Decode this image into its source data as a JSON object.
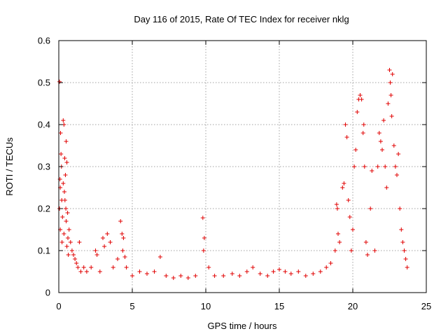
{
  "chart_data": {
    "type": "scatter",
    "title": "Day 116 of 2015, Rate Of TEC Index for receiver nklg",
    "xlabel": "GPS time / hours",
    "ylabel": "ROTI / TECUs",
    "xlim": [
      0,
      25
    ],
    "ylim": [
      0,
      0.6
    ],
    "xticks": [
      0,
      5,
      10,
      15,
      20,
      25
    ],
    "yticks": [
      0,
      0.1,
      0.2,
      0.3,
      0.4,
      0.5,
      0.6
    ],
    "xtick_labels": [
      "0",
      "5",
      "10",
      "15",
      "20",
      "25"
    ],
    "ytick_labels": [
      "0",
      "0.1",
      "0.2",
      "0.3",
      "0.4",
      "0.5",
      "0.6"
    ],
    "grid": true,
    "marker": "+",
    "color": "#e00000",
    "series": [
      {
        "points": [
          [
            0.05,
            0.502
          ],
          [
            0.08,
            0.27
          ],
          [
            0.12,
            0.38
          ],
          [
            0.15,
            0.33
          ],
          [
            0.1,
            0.25
          ],
          [
            0.2,
            0.22
          ],
          [
            0.18,
            0.3
          ],
          [
            0.05,
            0.2
          ],
          [
            0.1,
            0.15
          ],
          [
            0.22,
            0.12
          ],
          [
            0.3,
            0.41
          ],
          [
            0.35,
            0.4
          ],
          [
            0.4,
            0.32
          ],
          [
            0.45,
            0.28
          ],
          [
            0.5,
            0.36
          ],
          [
            0.55,
            0.31
          ],
          [
            0.3,
            0.26
          ],
          [
            0.38,
            0.24
          ],
          [
            0.48,
            0.2
          ],
          [
            0.6,
            0.19
          ],
          [
            0.42,
            0.22
          ],
          [
            0.5,
            0.17
          ],
          [
            0.7,
            0.15
          ],
          [
            0.62,
            0.13
          ],
          [
            0.8,
            0.12
          ],
          [
            0.9,
            0.1
          ],
          [
            0.55,
            0.11
          ],
          [
            0.35,
            0.14
          ],
          [
            0.25,
            0.18
          ],
          [
            0.65,
            0.09
          ],
          [
            1.0,
            0.09
          ],
          [
            1.1,
            0.08
          ],
          [
            1.2,
            0.07
          ],
          [
            1.3,
            0.06
          ],
          [
            1.4,
            0.12
          ],
          [
            1.5,
            0.05
          ],
          [
            1.7,
            0.06
          ],
          [
            1.9,
            0.05
          ],
          [
            2.2,
            0.06
          ],
          [
            2.5,
            0.1
          ],
          [
            2.6,
            0.09
          ],
          [
            2.8,
            0.05
          ],
          [
            3.0,
            0.13
          ],
          [
            3.1,
            0.11
          ],
          [
            3.3,
            0.14
          ],
          [
            3.5,
            0.12
          ],
          [
            3.7,
            0.06
          ],
          [
            4.0,
            0.08
          ],
          [
            4.2,
            0.17
          ],
          [
            4.3,
            0.14
          ],
          [
            4.35,
            0.1
          ],
          [
            4.4,
            0.13
          ],
          [
            4.5,
            0.085
          ],
          [
            4.6,
            0.06
          ],
          [
            5.0,
            0.04
          ],
          [
            5.5,
            0.05
          ],
          [
            6.0,
            0.045
          ],
          [
            6.5,
            0.05
          ],
          [
            6.9,
            0.085
          ],
          [
            7.3,
            0.04
          ],
          [
            7.8,
            0.035
          ],
          [
            8.3,
            0.04
          ],
          [
            8.8,
            0.035
          ],
          [
            9.3,
            0.04
          ],
          [
            9.8,
            0.178
          ],
          [
            9.85,
            0.1
          ],
          [
            9.9,
            0.13
          ],
          [
            10.2,
            0.06
          ],
          [
            10.6,
            0.04
          ],
          [
            11.2,
            0.04
          ],
          [
            11.8,
            0.045
          ],
          [
            12.3,
            0.04
          ],
          [
            12.8,
            0.05
          ],
          [
            13.2,
            0.06
          ],
          [
            13.7,
            0.045
          ],
          [
            14.2,
            0.04
          ],
          [
            14.6,
            0.05
          ],
          [
            15.0,
            0.055
          ],
          [
            15.4,
            0.05
          ],
          [
            15.8,
            0.045
          ],
          [
            16.3,
            0.05
          ],
          [
            16.8,
            0.04
          ],
          [
            17.3,
            0.045
          ],
          [
            17.8,
            0.05
          ],
          [
            18.2,
            0.06
          ],
          [
            18.5,
            0.07
          ],
          [
            18.8,
            0.1
          ],
          [
            18.9,
            0.21
          ],
          [
            18.95,
            0.2
          ],
          [
            19.0,
            0.14
          ],
          [
            19.1,
            0.12
          ],
          [
            19.3,
            0.25
          ],
          [
            19.4,
            0.26
          ],
          [
            19.5,
            0.4
          ],
          [
            19.6,
            0.37
          ],
          [
            19.7,
            0.22
          ],
          [
            19.8,
            0.18
          ],
          [
            19.9,
            0.1
          ],
          [
            20.0,
            0.15
          ],
          [
            20.1,
            0.3
          ],
          [
            20.2,
            0.34
          ],
          [
            20.3,
            0.43
          ],
          [
            20.4,
            0.46
          ],
          [
            20.5,
            0.47
          ],
          [
            20.6,
            0.46
          ],
          [
            20.7,
            0.38
          ],
          [
            20.75,
            0.4
          ],
          [
            20.8,
            0.3
          ],
          [
            20.9,
            0.12
          ],
          [
            21.0,
            0.09
          ],
          [
            21.2,
            0.2
          ],
          [
            21.3,
            0.29
          ],
          [
            21.5,
            0.1
          ],
          [
            21.7,
            0.3
          ],
          [
            21.8,
            0.38
          ],
          [
            21.9,
            0.36
          ],
          [
            22.0,
            0.34
          ],
          [
            22.1,
            0.41
          ],
          [
            22.2,
            0.3
          ],
          [
            22.3,
            0.25
          ],
          [
            22.4,
            0.45
          ],
          [
            22.5,
            0.53
          ],
          [
            22.55,
            0.5
          ],
          [
            22.6,
            0.47
          ],
          [
            22.65,
            0.42
          ],
          [
            22.7,
            0.52
          ],
          [
            22.8,
            0.35
          ],
          [
            22.9,
            0.3
          ],
          [
            23.0,
            0.28
          ],
          [
            23.1,
            0.33
          ],
          [
            23.2,
            0.2
          ],
          [
            23.3,
            0.15
          ],
          [
            23.4,
            0.12
          ],
          [
            23.5,
            0.1
          ],
          [
            23.6,
            0.08
          ],
          [
            23.7,
            0.06
          ]
        ]
      }
    ]
  }
}
